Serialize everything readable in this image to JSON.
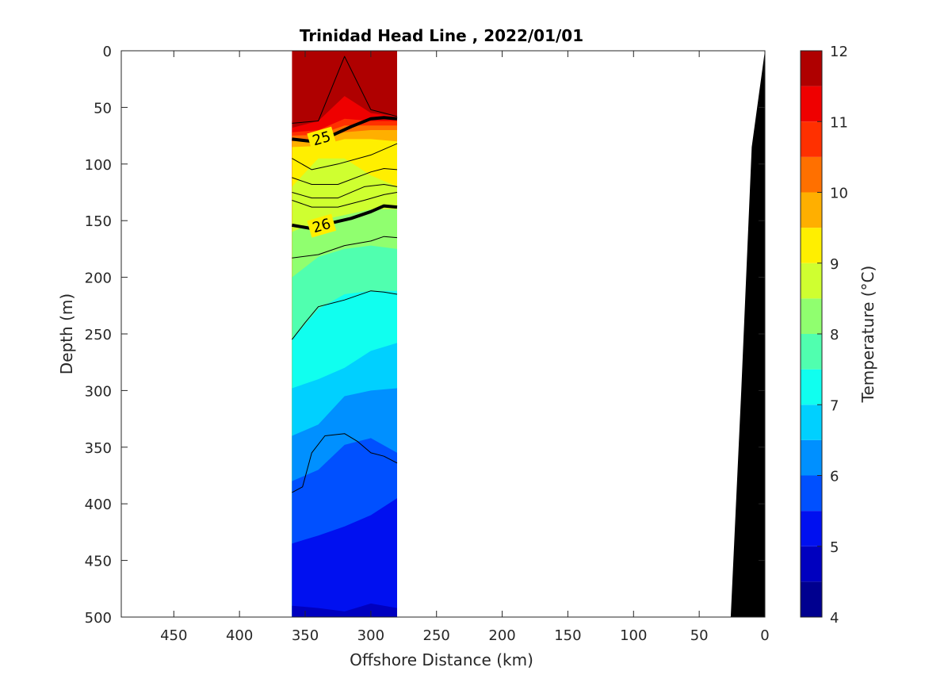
{
  "chart_data": {
    "type": "heatmap",
    "subtype": "filled-contour-section",
    "title": "Trinidad Head Line , 2022/01/01",
    "xlabel": "Offshore Distance (km)",
    "ylabel": "Depth (m)",
    "xlim": [
      490,
      0
    ],
    "x_reversed": true,
    "ylim": [
      500,
      0
    ],
    "y_reversed": true,
    "x_ticks": [
      450,
      400,
      350,
      300,
      250,
      200,
      150,
      100,
      50,
      0
    ],
    "y_ticks": [
      0,
      50,
      100,
      150,
      200,
      250,
      300,
      350,
      400,
      450,
      500
    ],
    "data_extent_x": [
      360,
      280
    ],
    "colorbar": {
      "label": "Temperature (°C)",
      "min": 4,
      "max": 12,
      "ticks": [
        4,
        5,
        6,
        7,
        8,
        9,
        10,
        11,
        12
      ],
      "colormap": "jet",
      "levels": [
        {
          "low": 4.0,
          "high": 4.5,
          "color": "#00008f"
        },
        {
          "low": 4.5,
          "high": 5.0,
          "color": "#0000bf"
        },
        {
          "low": 5.0,
          "high": 5.5,
          "color": "#0010f0"
        },
        {
          "low": 5.5,
          "high": 6.0,
          "color": "#0050ff"
        },
        {
          "low": 6.0,
          "high": 6.5,
          "color": "#0090ff"
        },
        {
          "low": 6.5,
          "high": 7.0,
          "color": "#00d0ff"
        },
        {
          "low": 7.0,
          "high": 7.5,
          "color": "#10ffef"
        },
        {
          "low": 7.5,
          "high": 8.0,
          "color": "#50ffaf"
        },
        {
          "low": 8.0,
          "high": 8.5,
          "color": "#90ff6f"
        },
        {
          "low": 8.5,
          "high": 9.0,
          "color": "#cfff30"
        },
        {
          "low": 9.0,
          "high": 9.5,
          "color": "#ffef00"
        },
        {
          "low": 9.5,
          "high": 10.0,
          "color": "#ffaf00"
        },
        {
          "low": 10.0,
          "high": 10.5,
          "color": "#ff7000"
        },
        {
          "low": 10.5,
          "high": 11.0,
          "color": "#ff3000"
        },
        {
          "low": 11.0,
          "high": 11.5,
          "color": "#ef0000"
        },
        {
          "low": 11.5,
          "high": 12.0,
          "color": "#af0000"
        }
      ]
    },
    "temperature_bands": [
      {
        "t": 12.0,
        "top_depth": [
          0,
          0,
          0,
          0,
          0
        ]
      },
      {
        "t": 11.5,
        "top_depth": [
          62,
          30,
          5,
          30,
          50
        ]
      },
      {
        "t": 11.0,
        "top_depth": [
          68,
          62,
          40,
          55,
          58
        ]
      },
      {
        "t": 10.5,
        "top_depth": [
          72,
          70,
          60,
          62,
          62
        ]
      },
      {
        "t": 10.0,
        "top_depth": [
          75,
          74,
          66,
          66,
          66
        ]
      },
      {
        "t": 9.5,
        "top_depth": [
          80,
          78,
          72,
          70,
          70
        ]
      },
      {
        "t": 9.0,
        "top_depth": [
          85,
          84,
          78,
          78,
          80
        ]
      },
      {
        "t": 8.5,
        "top_depth": [
          120,
          95,
          95,
          110,
          120
        ]
      },
      {
        "t": 8.0,
        "top_depth": [
          160,
          150,
          145,
          140,
          140
        ]
      },
      {
        "t": 7.5,
        "top_depth": [
          200,
          182,
          175,
          172,
          175
        ]
      },
      {
        "t": 7.0,
        "top_depth": [
          255,
          228,
          215,
          212,
          212
        ]
      },
      {
        "t": 6.5,
        "top_depth": [
          298,
          290,
          280,
          265,
          258
        ]
      },
      {
        "t": 6.0,
        "top_depth": [
          340,
          330,
          305,
          300,
          298
        ]
      },
      {
        "t": 5.5,
        "top_depth": [
          380,
          370,
          348,
          342,
          355
        ]
      },
      {
        "t": 5.0,
        "top_depth": [
          435,
          428,
          420,
          410,
          395
        ]
      },
      {
        "t": 4.5,
        "top_depth": [
          490,
          492,
          495,
          488,
          492
        ]
      }
    ],
    "band_x_positions": [
      360,
      340,
      320,
      300,
      280
    ],
    "contour_lines": [
      {
        "label": "25",
        "labeled": true,
        "bold": true,
        "x": [
          360,
          345,
          330,
          315,
          300,
          290,
          280
        ],
        "y": [
          78,
          80,
          75,
          67,
          60,
          59,
          60
        ]
      },
      {
        "label": "26",
        "labeled": true,
        "bold": true,
        "x": [
          360,
          345,
          330,
          315,
          300,
          290,
          280
        ],
        "y": [
          154,
          157,
          152,
          148,
          142,
          137,
          138
        ]
      },
      {
        "label": "",
        "labeled": false,
        "bold": false,
        "x": [
          360,
          340,
          320,
          300,
          290,
          280
        ],
        "y": [
          64,
          62,
          5,
          52,
          55,
          58
        ]
      },
      {
        "label": "",
        "labeled": false,
        "bold": false,
        "x": [
          360,
          345,
          325,
          300,
          280
        ],
        "y": [
          95,
          105,
          100,
          92,
          82
        ]
      },
      {
        "label": "",
        "labeled": false,
        "bold": false,
        "x": [
          360,
          345,
          325,
          300,
          290,
          280
        ],
        "y": [
          112,
          118,
          118,
          107,
          104,
          105
        ]
      },
      {
        "label": "",
        "labeled": false,
        "bold": false,
        "x": [
          360,
          345,
          325,
          305,
          290,
          280
        ],
        "y": [
          125,
          130,
          130,
          120,
          118,
          120
        ]
      },
      {
        "label": "",
        "labeled": false,
        "bold": false,
        "x": [
          360,
          345,
          325,
          305,
          290,
          280
        ],
        "y": [
          132,
          138,
          138,
          132,
          127,
          125
        ]
      },
      {
        "label": "",
        "labeled": false,
        "bold": false,
        "x": [
          360,
          340,
          320,
          300,
          290,
          280
        ],
        "y": [
          183,
          180,
          172,
          168,
          164,
          165
        ]
      },
      {
        "label": "",
        "labeled": false,
        "bold": false,
        "x": [
          360,
          350,
          340,
          320,
          300,
          290,
          280
        ],
        "y": [
          255,
          240,
          226,
          220,
          212,
          213,
          215
        ]
      },
      {
        "label": "",
        "labeled": false,
        "bold": false,
        "x": [
          360,
          352,
          345,
          335,
          320,
          310,
          300,
          290,
          280
        ],
        "y": [
          390,
          385,
          355,
          340,
          338,
          345,
          355,
          358,
          364
        ]
      }
    ],
    "seafloor": {
      "color": "#000000",
      "x": [
        0,
        10,
        18,
        26,
        26,
        0
      ],
      "y": [
        0,
        85,
        300,
        500,
        500,
        500
      ]
    }
  }
}
